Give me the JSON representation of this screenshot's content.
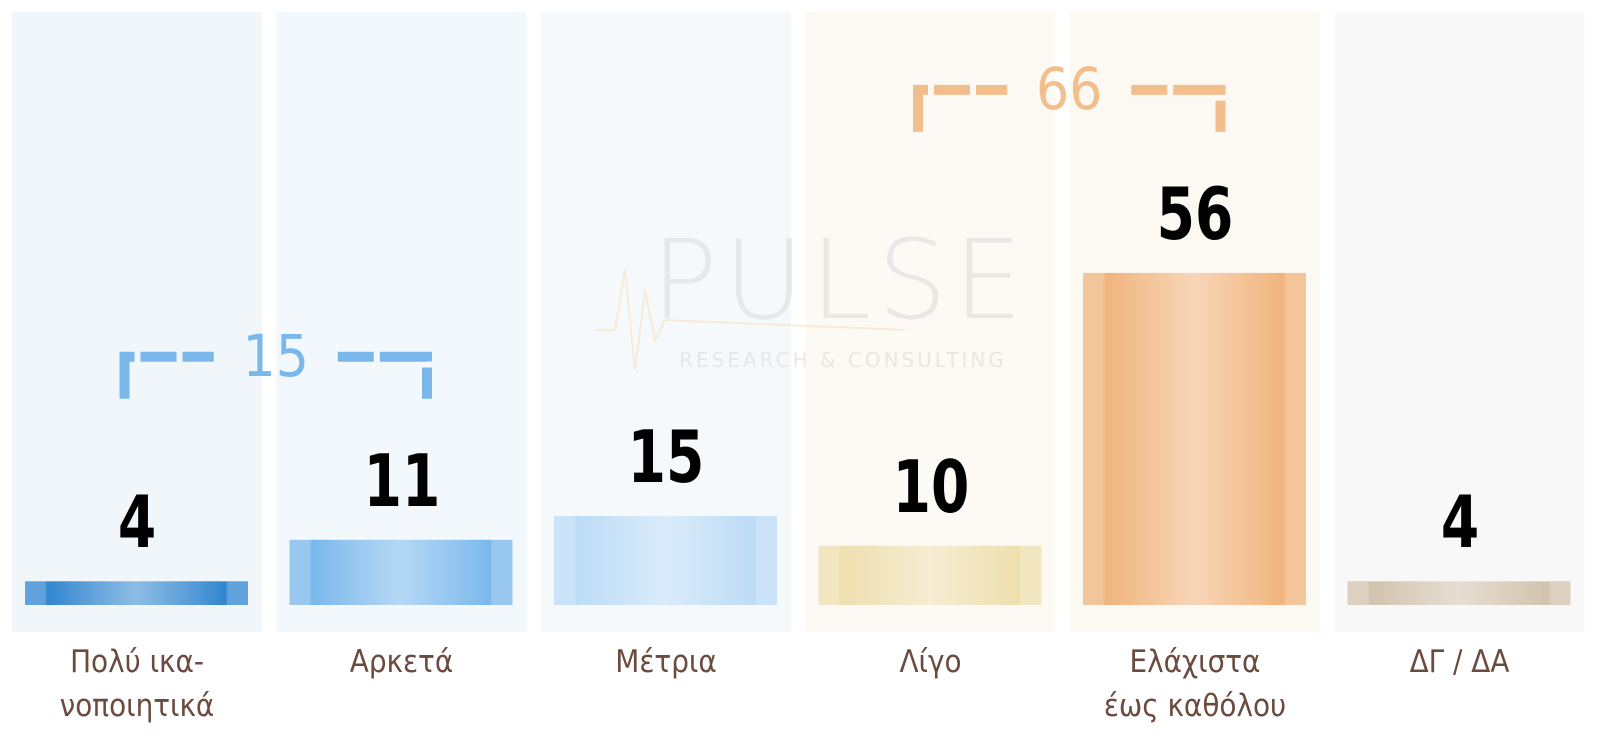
{
  "chart_data": {
    "type": "bar",
    "categories": [
      "Πολύ ικα-\nνοποιητικά",
      "Αρκετά",
      "Μέτρια",
      "Λίγο",
      "Ελάχιστα\nέως καθόλου",
      "ΔΓ / ΔΑ"
    ],
    "values": [
      4,
      11,
      15,
      10,
      56,
      4
    ],
    "colors": [
      "#2f86d0",
      "#7ab8ec",
      "#bcdcf6",
      "#eedfae",
      "#f0b47c",
      "#d2c3ae"
    ],
    "panel_colors": [
      "#f1f6fb",
      "#f3f8fc",
      "#f6f9fc",
      "#fdfaf5",
      "#fcf8f2",
      "#f8f8f8"
    ],
    "brackets": [
      {
        "label": 15,
        "categories": [
          "Πολύ ικα-\nνοποιητικά",
          "Αρκετά"
        ],
        "color": "#7ab8ec"
      },
      {
        "label": 66,
        "categories": [
          "Λίγο",
          "Ελάχιστα\nέως καθόλου"
        ],
        "color": "#f2bf8c"
      }
    ],
    "watermark": {
      "title": "PULSE",
      "subtitle": "RESEARCH & CONSULTING"
    }
  }
}
